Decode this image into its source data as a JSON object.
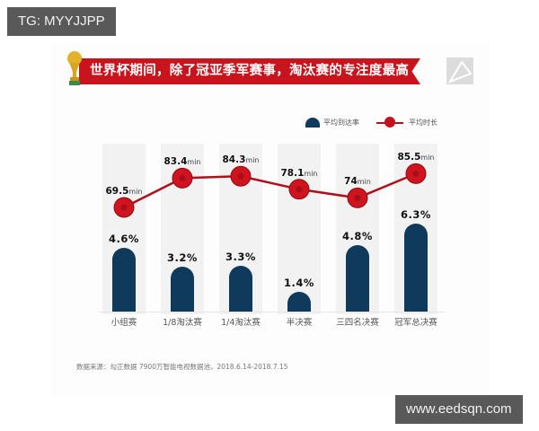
{
  "watermarks": {
    "top_left": "TG: MYYJJPP",
    "bottom_right": "www.eedsqn.com"
  },
  "header": {
    "title": "世界杯期间，除了冠亚季军赛事，淘汰赛的专注度最高",
    "icon_left": "trophy-icon",
    "icon_right": "brand-logo-icon"
  },
  "legend": {
    "bar_label": "平均到达率",
    "line_label": "平均时长"
  },
  "colors": {
    "banner": "#c8141c",
    "bar": "#0f3a5c",
    "line": "#b0101c",
    "band": "#f2f2f2"
  },
  "chart_data": {
    "type": "bar",
    "title": "世界杯期间，除了冠亚季军赛事，淘汰赛的专注度最高",
    "categories": [
      "小组赛",
      "1/8淘汰赛",
      "1/4淘汰赛",
      "半决赛",
      "三四名决赛",
      "冠军总决赛"
    ],
    "series": [
      {
        "name": "平均到达率",
        "type": "bar",
        "unit": "%",
        "values": [
          4.6,
          3.2,
          3.3,
          1.4,
          4.8,
          6.3
        ],
        "labels": [
          "4.6%",
          "3.2%",
          "3.3%",
          "1.4%",
          "4.8%",
          "6.3%"
        ]
      },
      {
        "name": "平均时长",
        "type": "line",
        "unit": "min",
        "values": [
          69.5,
          83.4,
          84.3,
          78.1,
          74,
          85.5
        ],
        "labels": [
          "69.5",
          "83.4",
          "84.3",
          "78.1",
          "74",
          "85.5"
        ]
      }
    ],
    "xlabel": "",
    "ylabel": "",
    "grid": false,
    "legend_position": "top-right",
    "source": "数据来源：勾正数据 7900万智能电视数据池，2018.6.14-2018.7.15"
  }
}
